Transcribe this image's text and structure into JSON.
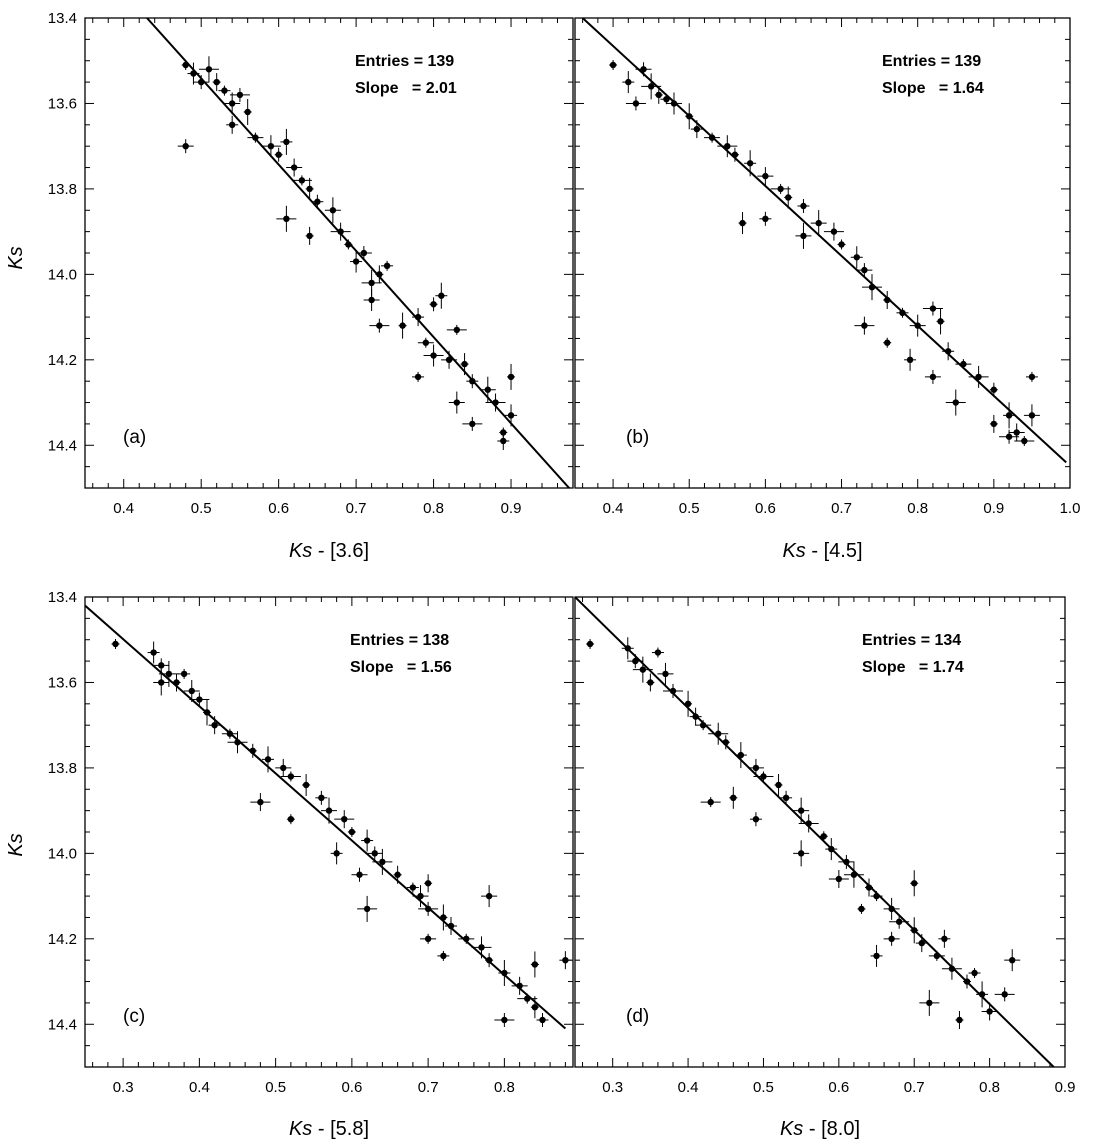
{
  "figure": {
    "background": "#ffffff",
    "ink": "#000000"
  },
  "chart_data": [
    {
      "type": "scatter",
      "panel_label": "(a)",
      "xlabel": "Ks - [3.6]",
      "ylabel": "Ks",
      "xlim": [
        0.35,
        0.98
      ],
      "ylim": [
        14.5,
        13.4
      ],
      "y_inverted": true,
      "xticks": [
        0.4,
        0.5,
        0.6,
        0.7,
        0.8,
        0.9
      ],
      "xtick_labels": [
        "0.4",
        "0.5",
        "0.6",
        "0.7",
        "0.8",
        "0.9"
      ],
      "yticks": [
        13.4,
        13.6,
        13.8,
        14.0,
        14.2,
        14.4
      ],
      "ytick_labels": [
        "13.4",
        "13.6",
        "13.8",
        "14.0",
        "14.2",
        "14.4"
      ],
      "stats": {
        "entries_label": "Entries = 139",
        "slope_label": "Slope   = 2.01"
      },
      "fit": {
        "slope": 2.01,
        "x": [
          0.43,
          0.975
        ],
        "y": [
          13.4,
          14.5
        ]
      },
      "points": [
        {
          "x": 0.48,
          "y": 13.51
        },
        {
          "x": 0.49,
          "y": 13.53
        },
        {
          "x": 0.5,
          "y": 13.55
        },
        {
          "x": 0.51,
          "y": 13.52
        },
        {
          "x": 0.52,
          "y": 13.55
        },
        {
          "x": 0.53,
          "y": 13.57
        },
        {
          "x": 0.54,
          "y": 13.6
        },
        {
          "x": 0.55,
          "y": 13.58
        },
        {
          "x": 0.56,
          "y": 13.62
        },
        {
          "x": 0.54,
          "y": 13.65
        },
        {
          "x": 0.57,
          "y": 13.68
        },
        {
          "x": 0.59,
          "y": 13.7
        },
        {
          "x": 0.6,
          "y": 13.72
        },
        {
          "x": 0.61,
          "y": 13.69
        },
        {
          "x": 0.62,
          "y": 13.75
        },
        {
          "x": 0.63,
          "y": 13.78
        },
        {
          "x": 0.64,
          "y": 13.8
        },
        {
          "x": 0.65,
          "y": 13.83
        },
        {
          "x": 0.67,
          "y": 13.85
        },
        {
          "x": 0.68,
          "y": 13.9
        },
        {
          "x": 0.69,
          "y": 13.93
        },
        {
          "x": 0.7,
          "y": 13.97
        },
        {
          "x": 0.71,
          "y": 13.95
        },
        {
          "x": 0.72,
          "y": 14.02
        },
        {
          "x": 0.73,
          "y": 14.0
        },
        {
          "x": 0.74,
          "y": 13.98
        },
        {
          "x": 0.72,
          "y": 14.06
        },
        {
          "x": 0.73,
          "y": 14.12
        },
        {
          "x": 0.76,
          "y": 14.12
        },
        {
          "x": 0.78,
          "y": 14.1
        },
        {
          "x": 0.79,
          "y": 14.16
        },
        {
          "x": 0.8,
          "y": 14.19
        },
        {
          "x": 0.8,
          "y": 14.07
        },
        {
          "x": 0.81,
          "y": 14.05
        },
        {
          "x": 0.82,
          "y": 14.2
        },
        {
          "x": 0.83,
          "y": 14.13
        },
        {
          "x": 0.84,
          "y": 14.21
        },
        {
          "x": 0.85,
          "y": 14.25
        },
        {
          "x": 0.87,
          "y": 14.27
        },
        {
          "x": 0.88,
          "y": 14.3
        },
        {
          "x": 0.89,
          "y": 14.37
        },
        {
          "x": 0.9,
          "y": 14.33
        },
        {
          "x": 0.48,
          "y": 13.7
        },
        {
          "x": 0.61,
          "y": 13.87
        },
        {
          "x": 0.64,
          "y": 13.91
        },
        {
          "x": 0.78,
          "y": 14.24
        },
        {
          "x": 0.83,
          "y": 14.3
        },
        {
          "x": 0.85,
          "y": 14.35
        },
        {
          "x": 0.9,
          "y": 14.24
        },
        {
          "x": 0.89,
          "y": 14.39
        }
      ]
    },
    {
      "type": "scatter",
      "panel_label": "(b)",
      "xlabel": "Ks - [4.5]",
      "ylabel": "Ks",
      "xlim": [
        0.35,
        1.0
      ],
      "ylim": [
        14.5,
        13.4
      ],
      "y_inverted": true,
      "xticks": [
        0.4,
        0.5,
        0.6,
        0.7,
        0.8,
        0.9,
        1.0
      ],
      "xtick_labels": [
        "0.4",
        "0.5",
        "0.6",
        "0.7",
        "0.8",
        "0.9",
        "1.0"
      ],
      "yticks": [
        13.4,
        13.6,
        13.8,
        14.0,
        14.2,
        14.4
      ],
      "ytick_labels": [
        "13.4",
        "13.6",
        "13.8",
        "14.0",
        "14.2",
        "14.4"
      ],
      "stats": {
        "entries_label": "Entries = 139",
        "slope_label": "Slope   = 1.64"
      },
      "fit": {
        "slope": 1.64,
        "x": [
          0.36,
          0.995
        ],
        "y": [
          13.4,
          14.44
        ]
      },
      "points": [
        {
          "x": 0.4,
          "y": 13.51
        },
        {
          "x": 0.42,
          "y": 13.55
        },
        {
          "x": 0.44,
          "y": 13.52
        },
        {
          "x": 0.45,
          "y": 13.56
        },
        {
          "x": 0.46,
          "y": 13.58
        },
        {
          "x": 0.47,
          "y": 13.59
        },
        {
          "x": 0.48,
          "y": 13.6
        },
        {
          "x": 0.43,
          "y": 13.6
        },
        {
          "x": 0.5,
          "y": 13.63
        },
        {
          "x": 0.51,
          "y": 13.66
        },
        {
          "x": 0.53,
          "y": 13.68
        },
        {
          "x": 0.55,
          "y": 13.7
        },
        {
          "x": 0.56,
          "y": 13.72
        },
        {
          "x": 0.58,
          "y": 13.74
        },
        {
          "x": 0.6,
          "y": 13.77
        },
        {
          "x": 0.62,
          "y": 13.8
        },
        {
          "x": 0.63,
          "y": 13.82
        },
        {
          "x": 0.65,
          "y": 13.84
        },
        {
          "x": 0.67,
          "y": 13.88
        },
        {
          "x": 0.69,
          "y": 13.9
        },
        {
          "x": 0.7,
          "y": 13.93
        },
        {
          "x": 0.72,
          "y": 13.96
        },
        {
          "x": 0.73,
          "y": 13.99
        },
        {
          "x": 0.74,
          "y": 14.03
        },
        {
          "x": 0.76,
          "y": 14.06
        },
        {
          "x": 0.78,
          "y": 14.09
        },
        {
          "x": 0.8,
          "y": 14.12
        },
        {
          "x": 0.82,
          "y": 14.08
        },
        {
          "x": 0.83,
          "y": 14.11
        },
        {
          "x": 0.84,
          "y": 14.18
        },
        {
          "x": 0.86,
          "y": 14.21
        },
        {
          "x": 0.88,
          "y": 14.24
        },
        {
          "x": 0.9,
          "y": 14.27
        },
        {
          "x": 0.92,
          "y": 14.33
        },
        {
          "x": 0.93,
          "y": 14.37
        },
        {
          "x": 0.94,
          "y": 14.39
        },
        {
          "x": 0.57,
          "y": 13.88
        },
        {
          "x": 0.6,
          "y": 13.87
        },
        {
          "x": 0.65,
          "y": 13.91
        },
        {
          "x": 0.73,
          "y": 14.12
        },
        {
          "x": 0.76,
          "y": 14.16
        },
        {
          "x": 0.79,
          "y": 14.2
        },
        {
          "x": 0.82,
          "y": 14.24
        },
        {
          "x": 0.85,
          "y": 14.3
        },
        {
          "x": 0.9,
          "y": 14.35
        },
        {
          "x": 0.95,
          "y": 14.24
        },
        {
          "x": 0.95,
          "y": 14.33
        },
        {
          "x": 0.92,
          "y": 14.38
        }
      ]
    },
    {
      "type": "scatter",
      "panel_label": "(c)",
      "xlabel": "Ks - [5.8]",
      "ylabel": "Ks",
      "xlim": [
        0.25,
        0.89
      ],
      "ylim": [
        14.5,
        13.4
      ],
      "y_inverted": true,
      "xticks": [
        0.3,
        0.4,
        0.5,
        0.6,
        0.7,
        0.8
      ],
      "xtick_labels": [
        "0.3",
        "0.4",
        "0.5",
        "0.6",
        "0.7",
        "0.8"
      ],
      "yticks": [
        13.4,
        13.6,
        13.8,
        14.0,
        14.2,
        14.4
      ],
      "ytick_labels": [
        "13.4",
        "13.6",
        "13.8",
        "14.0",
        "14.2",
        "14.4"
      ],
      "stats": {
        "entries_label": "Entries = 138",
        "slope_label": "Slope   = 1.56"
      },
      "fit": {
        "slope": 1.56,
        "x": [
          0.25,
          0.88
        ],
        "y": [
          13.42,
          14.41
        ]
      },
      "points": [
        {
          "x": 0.29,
          "y": 13.51
        },
        {
          "x": 0.34,
          "y": 13.53
        },
        {
          "x": 0.35,
          "y": 13.56
        },
        {
          "x": 0.36,
          "y": 13.58
        },
        {
          "x": 0.37,
          "y": 13.6
        },
        {
          "x": 0.38,
          "y": 13.58
        },
        {
          "x": 0.39,
          "y": 13.62
        },
        {
          "x": 0.4,
          "y": 13.64
        },
        {
          "x": 0.41,
          "y": 13.67
        },
        {
          "x": 0.42,
          "y": 13.7
        },
        {
          "x": 0.44,
          "y": 13.72
        },
        {
          "x": 0.45,
          "y": 13.74
        },
        {
          "x": 0.47,
          "y": 13.76
        },
        {
          "x": 0.49,
          "y": 13.78
        },
        {
          "x": 0.51,
          "y": 13.8
        },
        {
          "x": 0.52,
          "y": 13.82
        },
        {
          "x": 0.54,
          "y": 13.84
        },
        {
          "x": 0.56,
          "y": 13.87
        },
        {
          "x": 0.57,
          "y": 13.9
        },
        {
          "x": 0.59,
          "y": 13.92
        },
        {
          "x": 0.6,
          "y": 13.95
        },
        {
          "x": 0.62,
          "y": 13.97
        },
        {
          "x": 0.63,
          "y": 14.0
        },
        {
          "x": 0.64,
          "y": 14.02
        },
        {
          "x": 0.66,
          "y": 14.05
        },
        {
          "x": 0.68,
          "y": 14.08
        },
        {
          "x": 0.69,
          "y": 14.1
        },
        {
          "x": 0.7,
          "y": 14.13
        },
        {
          "x": 0.72,
          "y": 14.15
        },
        {
          "x": 0.73,
          "y": 14.17
        },
        {
          "x": 0.75,
          "y": 14.2
        },
        {
          "x": 0.77,
          "y": 14.22
        },
        {
          "x": 0.78,
          "y": 14.25
        },
        {
          "x": 0.8,
          "y": 14.28
        },
        {
          "x": 0.82,
          "y": 14.31
        },
        {
          "x": 0.83,
          "y": 14.34
        },
        {
          "x": 0.84,
          "y": 14.36
        },
        {
          "x": 0.85,
          "y": 14.39
        },
        {
          "x": 0.35,
          "y": 13.6
        },
        {
          "x": 0.48,
          "y": 13.88
        },
        {
          "x": 0.52,
          "y": 13.92
        },
        {
          "x": 0.58,
          "y": 14.0
        },
        {
          "x": 0.61,
          "y": 14.05
        },
        {
          "x": 0.62,
          "y": 14.13
        },
        {
          "x": 0.7,
          "y": 14.07
        },
        {
          "x": 0.72,
          "y": 14.24
        },
        {
          "x": 0.78,
          "y": 14.1
        },
        {
          "x": 0.8,
          "y": 14.39
        },
        {
          "x": 0.84,
          "y": 14.26
        },
        {
          "x": 0.88,
          "y": 14.25
        },
        {
          "x": 0.7,
          "y": 14.2
        }
      ]
    },
    {
      "type": "scatter",
      "panel_label": "(d)",
      "xlabel": "Ks - [8.0]",
      "ylabel": "Ks",
      "xlim": [
        0.25,
        0.9
      ],
      "ylim": [
        14.5,
        13.4
      ],
      "y_inverted": true,
      "xticks": [
        0.3,
        0.4,
        0.5,
        0.6,
        0.7,
        0.8,
        0.9
      ],
      "xtick_labels": [
        "0.3",
        "0.4",
        "0.5",
        "0.6",
        "0.7",
        "0.8",
        "0.9"
      ],
      "yticks": [
        13.4,
        13.6,
        13.8,
        14.0,
        14.2,
        14.4
      ],
      "ytick_labels": [
        "13.4",
        "13.6",
        "13.8",
        "14.0",
        "14.2",
        "14.4"
      ],
      "stats": {
        "entries_label": "Entries = 134",
        "slope_label": "Slope   = 1.74"
      },
      "fit": {
        "slope": 1.74,
        "x": [
          0.25,
          0.885
        ],
        "y": [
          13.4,
          14.5
        ]
      },
      "points": [
        {
          "x": 0.27,
          "y": 13.51
        },
        {
          "x": 0.32,
          "y": 13.52
        },
        {
          "x": 0.33,
          "y": 13.55
        },
        {
          "x": 0.34,
          "y": 13.57
        },
        {
          "x": 0.35,
          "y": 13.6
        },
        {
          "x": 0.36,
          "y": 13.53
        },
        {
          "x": 0.37,
          "y": 13.58
        },
        {
          "x": 0.38,
          "y": 13.62
        },
        {
          "x": 0.4,
          "y": 13.65
        },
        {
          "x": 0.41,
          "y": 13.68
        },
        {
          "x": 0.42,
          "y": 13.7
        },
        {
          "x": 0.44,
          "y": 13.72
        },
        {
          "x": 0.45,
          "y": 13.74
        },
        {
          "x": 0.47,
          "y": 13.77
        },
        {
          "x": 0.49,
          "y": 13.8
        },
        {
          "x": 0.5,
          "y": 13.82
        },
        {
          "x": 0.52,
          "y": 13.84
        },
        {
          "x": 0.53,
          "y": 13.87
        },
        {
          "x": 0.55,
          "y": 13.9
        },
        {
          "x": 0.56,
          "y": 13.93
        },
        {
          "x": 0.58,
          "y": 13.96
        },
        {
          "x": 0.59,
          "y": 13.99
        },
        {
          "x": 0.61,
          "y": 14.02
        },
        {
          "x": 0.62,
          "y": 14.05
        },
        {
          "x": 0.64,
          "y": 14.08
        },
        {
          "x": 0.65,
          "y": 14.1
        },
        {
          "x": 0.67,
          "y": 14.13
        },
        {
          "x": 0.68,
          "y": 14.16
        },
        {
          "x": 0.7,
          "y": 14.18
        },
        {
          "x": 0.71,
          "y": 14.21
        },
        {
          "x": 0.73,
          "y": 14.24
        },
        {
          "x": 0.75,
          "y": 14.27
        },
        {
          "x": 0.77,
          "y": 14.3
        },
        {
          "x": 0.79,
          "y": 14.33
        },
        {
          "x": 0.8,
          "y": 14.37
        },
        {
          "x": 0.43,
          "y": 13.88
        },
        {
          "x": 0.46,
          "y": 13.87
        },
        {
          "x": 0.49,
          "y": 13.92
        },
        {
          "x": 0.55,
          "y": 14.0
        },
        {
          "x": 0.6,
          "y": 14.06
        },
        {
          "x": 0.63,
          "y": 14.13
        },
        {
          "x": 0.65,
          "y": 14.24
        },
        {
          "x": 0.67,
          "y": 14.2
        },
        {
          "x": 0.72,
          "y": 14.35
        },
        {
          "x": 0.76,
          "y": 14.39
        },
        {
          "x": 0.78,
          "y": 14.28
        },
        {
          "x": 0.83,
          "y": 14.25
        },
        {
          "x": 0.82,
          "y": 14.33
        },
        {
          "x": 0.7,
          "y": 14.07
        },
        {
          "x": 0.74,
          "y": 14.2
        }
      ]
    }
  ]
}
